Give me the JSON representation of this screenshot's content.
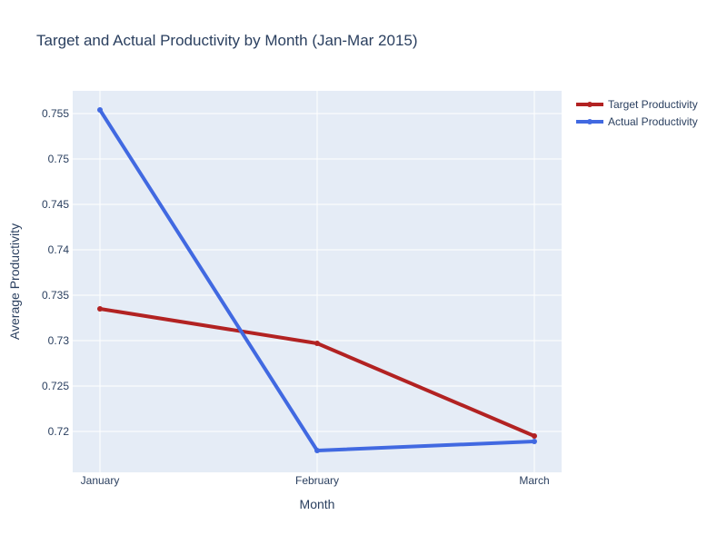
{
  "chart_data": {
    "type": "line",
    "title": "Target and Actual Productivity by Month (Jan-Mar 2015)",
    "xlabel": "Month",
    "ylabel": "Average Productivity",
    "categories": [
      "January",
      "February",
      "March"
    ],
    "ylim": [
      0.7155,
      0.7575
    ],
    "yticks": [
      0.72,
      0.725,
      0.73,
      0.735,
      0.74,
      0.745,
      0.75,
      0.755
    ],
    "ytick_labels": [
      "0.72",
      "0.725",
      "0.73",
      "0.735",
      "0.74",
      "0.745",
      "0.75",
      "0.755"
    ],
    "grid": true,
    "legend_position": "top-right",
    "series": [
      {
        "name": "Target Productivity",
        "color": "#b22222",
        "values": [
          0.7335,
          0.7297,
          0.7195
        ]
      },
      {
        "name": "Actual Productivity",
        "color": "#4169e1",
        "values": [
          0.7554,
          0.7179,
          0.7189
        ]
      }
    ]
  }
}
